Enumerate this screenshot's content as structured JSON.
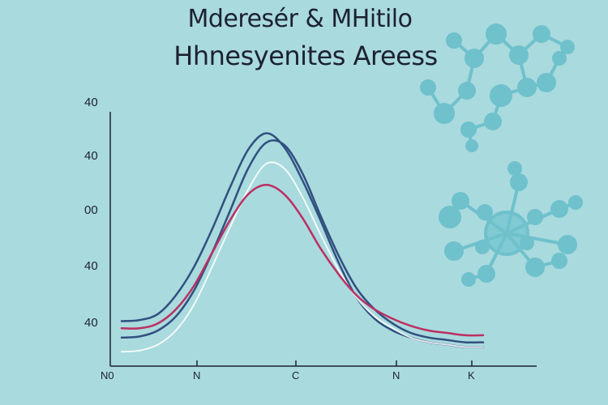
{
  "chart_data": {
    "type": "line",
    "title": "Mderesér & MHitilo",
    "subtitle": "Hhnesyenites Areess",
    "ylabel": "",
    "xlabel": "",
    "y_tick_labels": [
      "40",
      "40",
      "00",
      "40",
      "40"
    ],
    "x_tick_labels": [
      "N0",
      "N",
      "C",
      "N",
      "K"
    ],
    "x": [
      0,
      1,
      2,
      3,
      4,
      5,
      6,
      7,
      8,
      9,
      10,
      11,
      12,
      13,
      14,
      15,
      16,
      17,
      18,
      19,
      20
    ],
    "xlim": [
      0,
      20
    ],
    "ylim": [
      0,
      100
    ],
    "grid": false,
    "legend": "none",
    "series": [
      {
        "color": "#31507f",
        "values": [
          15,
          15.5,
          18,
          26,
          38,
          54,
          72,
          88,
          95,
          89,
          75,
          58,
          40,
          25,
          16,
          11,
          8,
          6,
          5,
          4,
          4
        ]
      },
      {
        "color": "#31507f",
        "values": [
          8,
          8.5,
          11,
          17,
          28,
          44,
          62,
          80,
          91,
          90,
          78,
          60,
          43,
          29,
          20,
          14,
          10,
          8,
          7,
          6,
          6
        ]
      },
      {
        "color": "#ffffff",
        "values": [
          2,
          2.5,
          5,
          11,
          22,
          38,
          55,
          71,
          82,
          80,
          68,
          52,
          37,
          25,
          17,
          12,
          8,
          6,
          5,
          4,
          4
        ]
      },
      {
        "color": "#bc2f62",
        "values": [
          12,
          12,
          14,
          20,
          30,
          44,
          58,
          69,
          73,
          69,
          59,
          46,
          35,
          26,
          20,
          16,
          13,
          11,
          10,
          9,
          9
        ]
      }
    ]
  }
}
